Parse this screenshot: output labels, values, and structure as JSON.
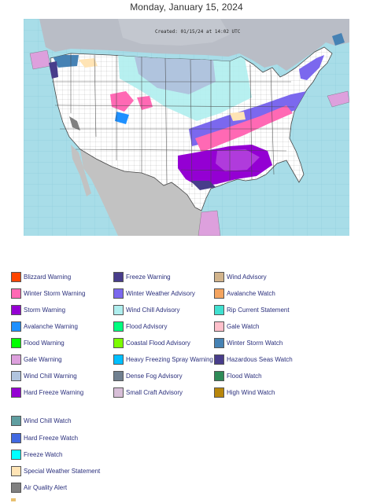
{
  "page": {
    "date": "Monday, January 15, 2024"
  },
  "map": {
    "created_stamp": "Created: 01/15/24 at 14:02 UTC",
    "colors": {
      "ocean": "#a8dde8",
      "land_us": "#ffffff",
      "land_canada": "#b9bdc6",
      "land_mexico": "#c0c0c0",
      "county_lines": "#9a9a9a",
      "state_lines": "#444444"
    }
  },
  "legend": {
    "items": [
      {
        "label": "Blizzard Warning",
        "color": "#ff4500"
      },
      {
        "label": "Winter Storm Warning",
        "color": "#ff69b4"
      },
      {
        "label": "Storm Warning",
        "color": "#9400d3"
      },
      {
        "label": "Avalanche Warning",
        "color": "#1e90ff"
      },
      {
        "label": "Flood Warning",
        "color": "#00ff00"
      },
      {
        "label": "Gale Warning",
        "color": "#dda0dd"
      },
      {
        "label": "Wind Chill Warning",
        "color": "#b0c4de"
      },
      {
        "label": "Hard Freeze Warning",
        "color": "#9400d3"
      },
      {
        "label": "Freeze Warning",
        "color": "#483d8b"
      },
      {
        "label": "Winter Weather Advisory",
        "color": "#7b68ee"
      },
      {
        "label": "Wind Chill Advisory",
        "color": "#afeeee"
      },
      {
        "label": "Flood Advisory",
        "color": "#00ff7f"
      },
      {
        "label": "Coastal Flood Advisory",
        "color": "#7cfc00"
      },
      {
        "label": "Heavy Freezing Spray Warning",
        "color": "#00bfff"
      },
      {
        "label": "Dense Fog Advisory",
        "color": "#708090"
      },
      {
        "label": "Small Craft Advisory",
        "color": "#d8bfd8"
      },
      {
        "label": "Wind Advisory",
        "color": "#d2b48c"
      },
      {
        "label": "Avalanche Watch",
        "color": "#f4a460"
      },
      {
        "label": "Rip Current Statement",
        "color": "#40e0d0"
      },
      {
        "label": "Gale Watch",
        "color": "#ffc0cb"
      },
      {
        "label": "Winter Storm Watch",
        "color": "#4682b4"
      },
      {
        "label": "Hazardous Seas Watch",
        "color": "#483d8b"
      },
      {
        "label": "Flood Watch",
        "color": "#2e8b57"
      },
      {
        "label": "High Wind Watch",
        "color": "#b8860b"
      },
      {
        "label": "Wind Chill Watch",
        "color": "#5f9ea0"
      },
      {
        "label": "Hard Freeze Watch",
        "color": "#4169e1"
      },
      {
        "label": "Freeze Watch",
        "color": "#00ffff"
      },
      {
        "label": "Special Weather Statement",
        "color": "#ffe4b5"
      },
      {
        "label": "Air Quality Alert",
        "color": "#808080"
      }
    ]
  }
}
